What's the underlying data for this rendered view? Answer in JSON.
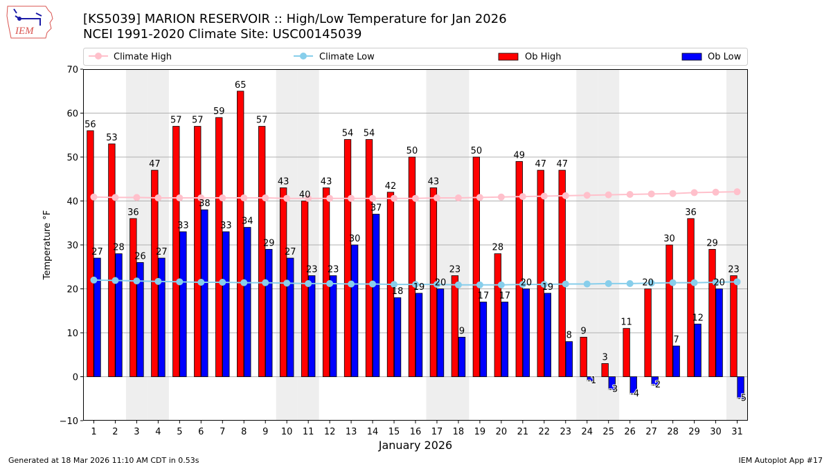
{
  "header": {
    "logo_text": "IEM",
    "title_line1": "[KS5039] MARION RESERVOIR :: High/Low Temperature for Jan 2026",
    "title_line2": "NCEI 1991-2020 Climate Site: USC00145039"
  },
  "footer": {
    "generated": "Generated at 18 Mar 2026 11:10 AM CDT in 0.53s",
    "app": "IEM Autoplot App #17"
  },
  "colors": {
    "ob_high": "#ff0000",
    "ob_low": "#0000ff",
    "climate_high": "#ffc0cb",
    "climate_low": "#87ceeb",
    "weekend_shade": "#eeeeee",
    "grid": "#b0b0b0"
  },
  "chart_data": {
    "type": "bar",
    "title": "[KS5039] MARION RESERVOIR :: High/Low Temperature for Jan 2026",
    "subtitle": "NCEI 1991-2020 Climate Site: USC00145039",
    "xlabel": "January 2026",
    "ylabel": "Temperature °F",
    "ylim": [
      -10,
      70
    ],
    "yticks": [
      -10,
      0,
      10,
      20,
      30,
      40,
      50,
      60,
      70
    ],
    "ytick_labels": [
      "−10",
      "0",
      "10",
      "20",
      "30",
      "40",
      "50",
      "60",
      "70"
    ],
    "grid": "horizontal",
    "legend_position": "top",
    "categories": [
      "1",
      "2",
      "3",
      "4",
      "5",
      "6",
      "7",
      "8",
      "9",
      "10",
      "11",
      "12",
      "13",
      "14",
      "15",
      "16",
      "17",
      "18",
      "19",
      "20",
      "21",
      "22",
      "23",
      "24",
      "25",
      "26",
      "27",
      "28",
      "29",
      "30",
      "31"
    ],
    "weekend_days": [
      3,
      4,
      10,
      11,
      17,
      18,
      24,
      25,
      31
    ],
    "series": [
      {
        "name": "Ob High",
        "kind": "bar",
        "values": [
          56,
          53,
          36,
          47,
          57,
          57,
          59,
          65,
          57,
          43,
          40,
          43,
          54,
          54,
          42,
          50,
          43,
          23,
          50,
          28,
          49,
          47,
          47,
          9,
          3,
          11,
          20,
          30,
          36,
          29,
          23
        ]
      },
      {
        "name": "Ob Low",
        "kind": "bar",
        "values": [
          27,
          28,
          26,
          27,
          33,
          38,
          33,
          34,
          29,
          27,
          23,
          23,
          30,
          37,
          18,
          19,
          20,
          9,
          17,
          17,
          20,
          19,
          8,
          -1,
          -3,
          -4,
          -2,
          7,
          12,
          20,
          -5
        ]
      },
      {
        "name": "Climate High",
        "kind": "line",
        "values": [
          40.9,
          40.8,
          40.8,
          40.7,
          40.7,
          40.7,
          40.7,
          40.7,
          40.7,
          40.6,
          40.6,
          40.6,
          40.6,
          40.6,
          40.6,
          40.6,
          40.7,
          40.7,
          40.8,
          40.9,
          41.0,
          41.1,
          41.2,
          41.3,
          41.4,
          41.5,
          41.6,
          41.7,
          41.9,
          42.0,
          42.1
        ]
      },
      {
        "name": "Climate Low",
        "kind": "line",
        "values": [
          22.0,
          21.9,
          21.8,
          21.7,
          21.6,
          21.5,
          21.5,
          21.4,
          21.4,
          21.3,
          21.2,
          21.2,
          21.1,
          21.1,
          21.0,
          21.0,
          21.0,
          20.9,
          20.9,
          20.9,
          21.0,
          21.0,
          21.1,
          21.1,
          21.2,
          21.2,
          21.3,
          21.4,
          21.4,
          21.5,
          21.6
        ]
      }
    ],
    "legend": [
      "Climate High",
      "Climate Low",
      "Ob High",
      "Ob Low"
    ]
  }
}
